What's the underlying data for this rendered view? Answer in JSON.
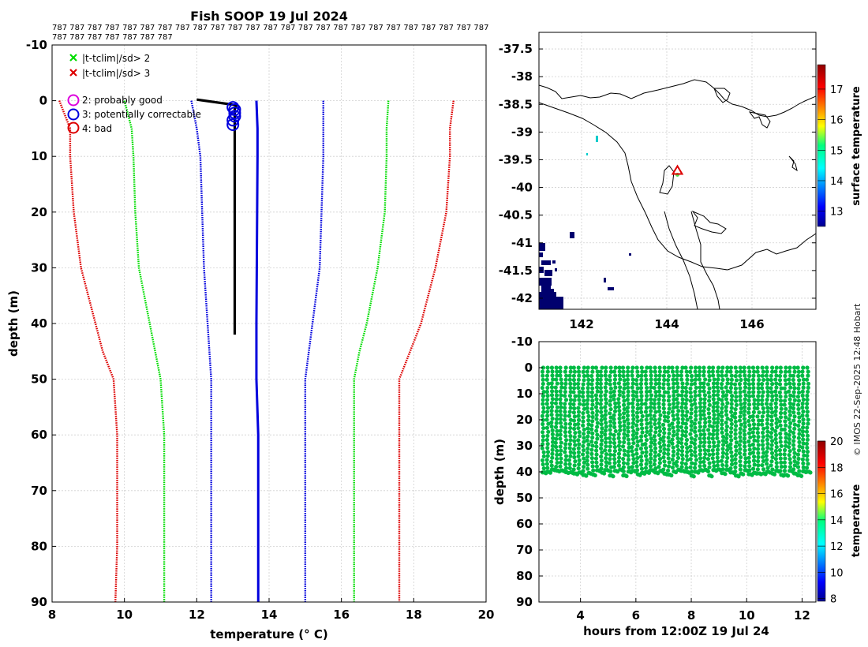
{
  "title": "Fish SOOP 19 Jul 2024",
  "code_line_1": "787 787 787 787 787 787 787 787 787 787 787 787 787 787 787 787 787 787 787 787 787 787 787 787 787",
  "code_line_2": "787 787 787 787 787 787 787",
  "credit": "© IMOS 22-Sep-2025 12:48 Hobart",
  "legend": {
    "cross_green": "|t-tclim|/sd> 2",
    "cross_red": "|t-tclim|/sd> 3",
    "flag2": "2: probably good",
    "flag3": "3: potentially correctable",
    "flag4": "4: bad"
  },
  "colors": {
    "green": "#00dd00",
    "red": "#dd0000",
    "blue": "#0000dd",
    "magenta": "#dd00dd",
    "track": "#00bb44",
    "profile": "#000000"
  },
  "chart_data": [
    {
      "type": "line",
      "title": "Fish SOOP 19 Jul 2024",
      "xlabel": "temperature (° C)",
      "ylabel": "depth (m)",
      "xlim": [
        8,
        20
      ],
      "ylim": [
        -10,
        90
      ],
      "xticks": [
        "8",
        "10",
        "12",
        "14",
        "16",
        "18",
        "20"
      ],
      "yticks": [
        "-10",
        "0",
        "10",
        "20",
        "30",
        "40",
        "50",
        "60",
        "70",
        "80",
        "90"
      ],
      "depth": [
        0,
        5,
        10,
        20,
        30,
        40,
        45,
        50,
        60,
        70,
        80,
        90
      ],
      "series": [
        {
          "name": "clim -3sd",
          "color": "red",
          "values": [
            8.2,
            8.5,
            8.5,
            8.6,
            8.8,
            9.2,
            9.4,
            9.7,
            9.8,
            9.8,
            9.8,
            9.75
          ]
        },
        {
          "name": "clim -2sd",
          "color": "green",
          "values": [
            10.0,
            10.2,
            10.25,
            10.3,
            10.4,
            10.7,
            10.85,
            11.0,
            11.1,
            11.1,
            11.1,
            11.1
          ]
        },
        {
          "name": "clim -1sd",
          "color": "blue",
          "values": [
            11.85,
            12.0,
            12.1,
            12.15,
            12.2,
            12.3,
            12.35,
            12.4,
            12.4,
            12.4,
            12.4,
            12.4
          ]
        },
        {
          "name": "climatology mean",
          "color": "blue",
          "values": [
            13.65,
            13.68,
            13.68,
            13.67,
            13.66,
            13.65,
            13.65,
            13.65,
            13.7,
            13.7,
            13.7,
            13.7
          ]
        },
        {
          "name": "clim +1sd",
          "color": "blue",
          "values": [
            15.5,
            15.5,
            15.5,
            15.45,
            15.4,
            15.2,
            15.1,
            15.0,
            15.0,
            15.0,
            15.0,
            15.0
          ]
        },
        {
          "name": "clim +2sd",
          "color": "green",
          "values": [
            17.3,
            17.25,
            17.25,
            17.2,
            17.0,
            16.7,
            16.5,
            16.35,
            16.35,
            16.35,
            16.35,
            16.35
          ]
        },
        {
          "name": "clim +3sd",
          "color": "red",
          "values": [
            19.1,
            19.0,
            19.0,
            18.9,
            18.6,
            18.2,
            17.9,
            17.6,
            17.6,
            17.6,
            17.6,
            17.6
          ]
        }
      ],
      "profile": {
        "temps": [
          12.0,
          13.1,
          13.05,
          13.05,
          13.05,
          13.05
        ],
        "depths": [
          -0.2,
          0.8,
          1.5,
          10,
          30,
          42
        ]
      },
      "flag3_points": {
        "temps": [
          13.0,
          13.05,
          13.05,
          13.05,
          13.0,
          13.0
        ],
        "depths": [
          1.2,
          1.6,
          2.2,
          2.8,
          3.5,
          4.3
        ]
      }
    },
    {
      "type": "scatter",
      "subtype": "map",
      "xlim": [
        141,
        147.5
      ],
      "ylim": [
        -42.2,
        -37.2
      ],
      "xticks": [
        "142",
        "144",
        "146"
      ],
      "yticks": [
        "-37.5",
        "-38",
        "-38.5",
        "-39",
        "-39.5",
        "-40",
        "-40.5",
        "-41",
        "-41.5",
        "-42"
      ],
      "colorbar_label": "surface temperature",
      "colorbar_ticks": [
        "13",
        "14",
        "15",
        "16",
        "17"
      ],
      "colorbar_range": [
        12.5,
        17.8
      ],
      "marker": {
        "lon": 144.25,
        "lat": -39.7
      }
    },
    {
      "type": "scatter",
      "xlabel": "hours from 12:00Z 19 Jul 24",
      "ylabel": "depth (m)",
      "xlim": [
        2.5,
        12.5
      ],
      "ylim": [
        -10,
        90
      ],
      "xticks": [
        "4",
        "6",
        "8",
        "10",
        "12"
      ],
      "yticks": [
        "-10",
        "0",
        "10",
        "20",
        "30",
        "40",
        "50",
        "60",
        "70",
        "80",
        "90"
      ],
      "colorbar_label": "temperature",
      "colorbar_ticks": [
        "8",
        "10",
        "12",
        "14",
        "16",
        "18",
        "20"
      ],
      "colorbar_range": [
        7.8,
        20
      ],
      "casts_start_hour": 2.65,
      "casts_end_hour": 12.2,
      "cast_count": 60,
      "max_depth": 40.5,
      "temperature": 13.1
    }
  ]
}
